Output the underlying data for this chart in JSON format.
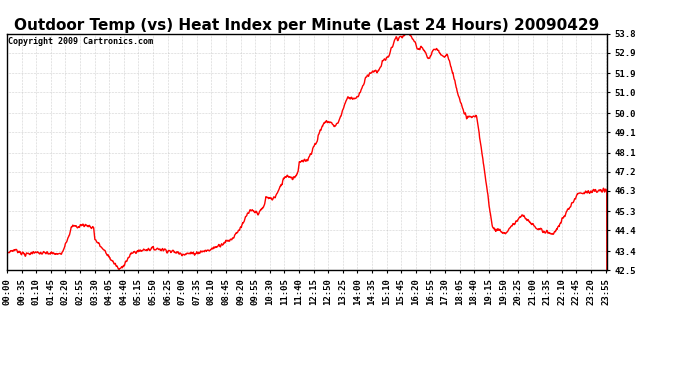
{
  "title": "Outdoor Temp (vs) Heat Index per Minute (Last 24 Hours) 20090429",
  "copyright_text": "Copyright 2009 Cartronics.com",
  "line_color": "#FF0000",
  "background_color": "#FFFFFF",
  "grid_color": "#AAAAAA",
  "y_tick_labels": [
    "42.5",
    "43.4",
    "44.4",
    "45.3",
    "46.3",
    "47.2",
    "48.1",
    "49.1",
    "50.0",
    "51.0",
    "51.9",
    "52.9",
    "53.8"
  ],
  "y_tick_values": [
    42.5,
    43.4,
    44.4,
    45.3,
    46.3,
    47.2,
    48.1,
    49.1,
    50.0,
    51.0,
    51.9,
    52.9,
    53.8
  ],
  "ylim": [
    42.5,
    53.8
  ],
  "x_tick_labels": [
    "00:00",
    "00:35",
    "01:10",
    "01:45",
    "02:20",
    "02:55",
    "03:30",
    "04:05",
    "04:40",
    "05:15",
    "05:50",
    "06:25",
    "07:00",
    "07:35",
    "08:10",
    "08:45",
    "09:20",
    "09:55",
    "10:30",
    "11:05",
    "11:40",
    "12:15",
    "12:50",
    "13:25",
    "14:00",
    "14:35",
    "15:10",
    "15:45",
    "16:20",
    "16:55",
    "17:30",
    "18:05",
    "18:40",
    "19:15",
    "19:50",
    "20:25",
    "21:00",
    "21:35",
    "22:10",
    "22:45",
    "23:20",
    "23:55"
  ],
  "title_fontsize": 11,
  "copyright_fontsize": 6,
  "tick_fontsize": 6.5,
  "line_width": 1.0
}
